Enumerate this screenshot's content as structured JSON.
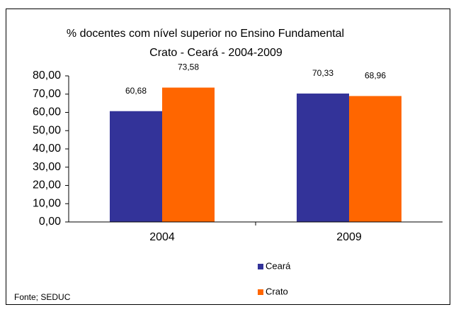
{
  "chart_data": {
    "type": "bar",
    "title": "% docentes com nível superior no Ensino Fundamental",
    "subtitle": "Crato - Ceará - 2004-2009",
    "categories": [
      "2004",
      "2009"
    ],
    "series": [
      {
        "name": "Ceará",
        "color": "#333399",
        "values": [
          60.68,
          70.33
        ],
        "value_labels": [
          "60,68",
          "70,33"
        ]
      },
      {
        "name": "Crato",
        "color": "#ff6600",
        "values": [
          73.58,
          68.96
        ],
        "value_labels": [
          "73,58",
          "68,96"
        ]
      }
    ],
    "ylim": [
      0,
      80
    ],
    "yticks": [
      {
        "value": 0,
        "label": "0,00"
      },
      {
        "value": 10,
        "label": "10,00"
      },
      {
        "value": 20,
        "label": "20,00"
      },
      {
        "value": 30,
        "label": "30,00"
      },
      {
        "value": 40,
        "label": "40,00"
      },
      {
        "value": 50,
        "label": "50,00"
      },
      {
        "value": 60,
        "label": "60,00"
      },
      {
        "value": 70,
        "label": "70,00"
      },
      {
        "value": 80,
        "label": "80,00"
      }
    ],
    "grid": false,
    "legend": "bottom",
    "annotations": [
      "Fonte; SEDUC"
    ]
  }
}
